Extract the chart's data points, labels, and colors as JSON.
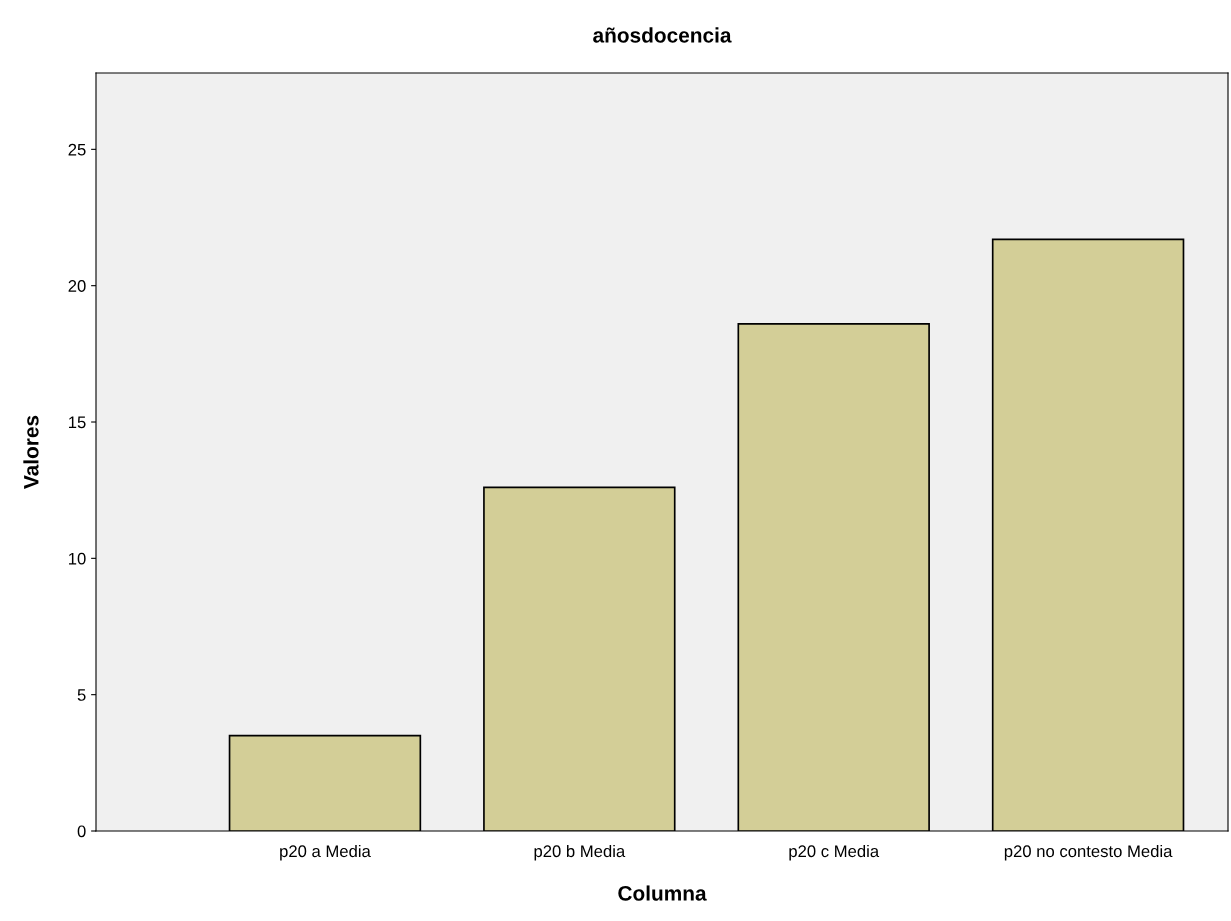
{
  "chart_data": {
    "type": "bar",
    "title": "añosdocencia",
    "xlabel": "Columna",
    "ylabel": "Valores",
    "categories": [
      "p20 a Media",
      "p20 b Media",
      "p20 c Media",
      "p20 no contesto Media"
    ],
    "values": [
      3.5,
      12.6,
      18.6,
      21.7
    ],
    "color": "#d3ce97",
    "ylim": [
      0,
      27.8
    ],
    "yticks": [
      0,
      5,
      10,
      15,
      20,
      25
    ],
    "grid": false,
    "legend": false
  }
}
